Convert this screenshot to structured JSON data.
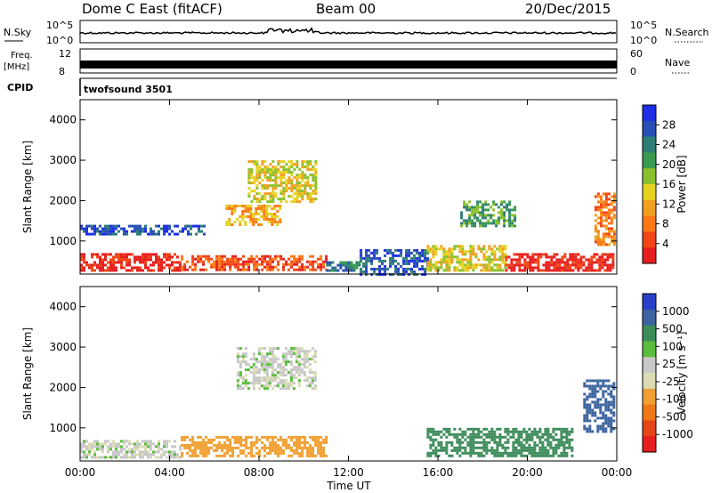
{
  "header": {
    "station": "Dome C East (fitACF)",
    "beam": "Beam 00",
    "date": "20/Dec/2015"
  },
  "strips": {
    "nsky_label": "N.Sky",
    "nsky_ticks": [
      "10^5",
      "10^0"
    ],
    "nsearch_label": "N.Search",
    "nsearch_ticks": [
      "10^5",
      "10^0"
    ],
    "freq_label": "Freq.",
    "freq_unit": "[MHz]",
    "freq_ticks": [
      "12",
      "8"
    ],
    "nave_label": "Nave",
    "nave_ticks": [
      "60",
      "0"
    ],
    "cpid_label": "CPID",
    "cpid_value": "twofsound 3501"
  },
  "chart_data": [
    {
      "type": "heatmap",
      "parameter": "Power",
      "ylabel": "Slant Range [km]",
      "xlabel": "Time UT",
      "xlim_hours": [
        0,
        24
      ],
      "ylim_km": [
        180,
        4500
      ],
      "yticks": [
        1000,
        2000,
        3000,
        4000
      ],
      "xticks": [
        "00:00",
        "04:00",
        "08:00",
        "12:00",
        "16:00",
        "20:00",
        "00:00"
      ],
      "colorbar": {
        "label": "Power [dB]",
        "ticks": [
          "4",
          "8",
          "12",
          "16",
          "20",
          "24",
          "28"
        ],
        "colors": [
          "#1e2ee6",
          "#2850b4",
          "#2e7d74",
          "#3a9a50",
          "#8ac02c",
          "#e6d21e",
          "#f0a01e",
          "#ff7814",
          "#f04616",
          "#e61e1e"
        ]
      },
      "echo_regions": [
        {
          "t": [
            0.0,
            4.5
          ],
          "r": [
            300,
            700
          ],
          "level": 9
        },
        {
          "t": [
            4.5,
            11.0
          ],
          "r": [
            300,
            650
          ],
          "level": 8
        },
        {
          "t": [
            11.0,
            12.5
          ],
          "r": [
            300,
            500
          ],
          "level": 2
        },
        {
          "t": [
            12.5,
            15.5
          ],
          "r": [
            200,
            800
          ],
          "level": 1
        },
        {
          "t": [
            15.5,
            19.0
          ],
          "r": [
            300,
            900
          ],
          "level": 5
        },
        {
          "t": [
            19.0,
            23.8
          ],
          "r": [
            300,
            700
          ],
          "level": 9
        },
        {
          "t": [
            0.0,
            5.5
          ],
          "r": [
            1200,
            1400
          ],
          "level": 1
        },
        {
          "t": [
            7.5,
            10.5
          ],
          "r": [
            2000,
            3000
          ],
          "level": 5
        },
        {
          "t": [
            6.5,
            9.0
          ],
          "r": [
            1400,
            1900
          ],
          "level": 6
        },
        {
          "t": [
            17.0,
            19.5
          ],
          "r": [
            1400,
            2000
          ],
          "level": 3
        },
        {
          "t": [
            23.0,
            23.9
          ],
          "r": [
            900,
            2200
          ],
          "level": 7
        }
      ]
    },
    {
      "type": "heatmap",
      "parameter": "Velocity",
      "ylabel": "Slant Range [km]",
      "xlabel": "Time UT",
      "xlim_hours": [
        0,
        24
      ],
      "ylim_km": [
        180,
        4500
      ],
      "yticks": [
        1000,
        2000,
        3000,
        4000
      ],
      "xticks": [
        "00:00",
        "04:00",
        "08:00",
        "12:00",
        "16:00",
        "20:00",
        "00:00"
      ],
      "colorbar": {
        "label": "Velocity [m s⁻¹]",
        "ticks": [
          "1000",
          "500",
          "100",
          "25",
          "-25",
          "-100",
          "-500",
          "-1000"
        ],
        "colors": [
          "#2840c8",
          "#3c64a0",
          "#3c8c5a",
          "#5abe3c",
          "#c8c8c8",
          "#dcdcb4",
          "#f0a032",
          "#f07814",
          "#e64618",
          "#e61e1e"
        ]
      },
      "echo_regions": [
        {
          "t": [
            0.0,
            4.5
          ],
          "r": [
            300,
            700
          ],
          "velocity": -5
        },
        {
          "t": [
            4.5,
            11.0
          ],
          "r": [
            300,
            800
          ],
          "velocity": -300
        },
        {
          "t": [
            7.0,
            10.5
          ],
          "r": [
            2000,
            3000
          ],
          "velocity": 0
        },
        {
          "t": [
            15.5,
            22.0
          ],
          "r": [
            300,
            1000
          ],
          "velocity": 150
        },
        {
          "t": [
            22.5,
            23.9
          ],
          "r": [
            900,
            2200
          ],
          "velocity": 800
        }
      ]
    }
  ]
}
